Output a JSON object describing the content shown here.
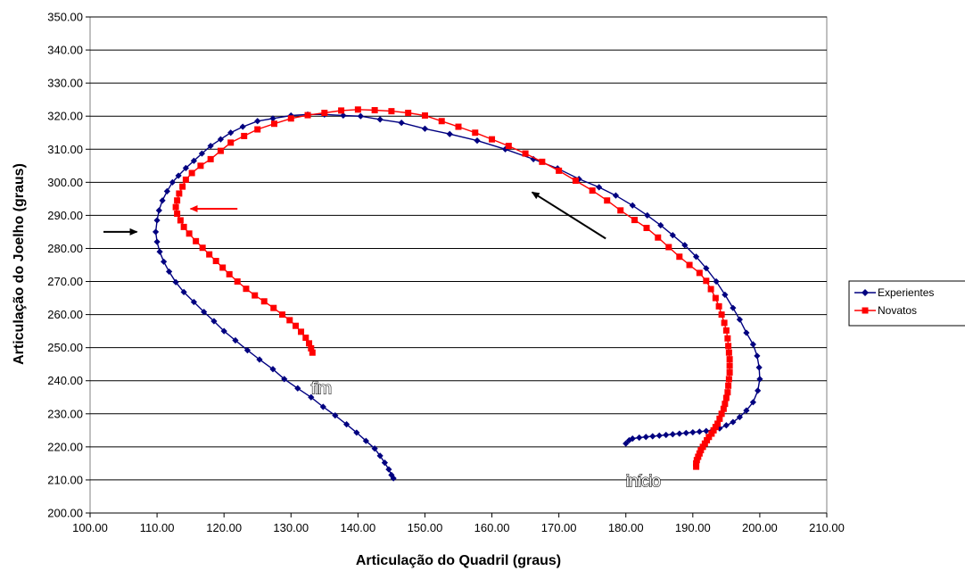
{
  "chart_data": {
    "type": "line",
    "xlabel": "Articulação do Quadril (graus)",
    "ylabel": "Articulação do Joelho (graus)",
    "xlim": [
      100,
      210
    ],
    "ylim": [
      200,
      350
    ],
    "x_ticks": [
      "100.00",
      "110.00",
      "120.00",
      "130.00",
      "140.00",
      "150.00",
      "160.00",
      "170.00",
      "180.00",
      "190.00",
      "200.00",
      "210.00"
    ],
    "y_ticks": [
      "200.00",
      "210.00",
      "220.00",
      "230.00",
      "240.00",
      "250.00",
      "260.00",
      "270.00",
      "280.00",
      "290.00",
      "300.00",
      "310.00",
      "320.00",
      "330.00",
      "340.00",
      "350.00"
    ],
    "grid": "horizontal",
    "legend_position": "right",
    "annotations": [
      {
        "text": "fim",
        "x": 133,
        "y": 236
      },
      {
        "text": "início",
        "x": 180,
        "y": 208
      }
    ],
    "arrows": [
      {
        "color": "#000000",
        "from": [
          177,
          283
        ],
        "to": [
          166,
          297
        ]
      },
      {
        "color": "#ff0000",
        "from": [
          122,
          292
        ],
        "to": [
          115,
          292
        ]
      },
      {
        "color": "#000000",
        "from": [
          102,
          285
        ],
        "to": [
          107,
          285
        ]
      }
    ],
    "series": [
      {
        "name": "Experientes",
        "color": "#000080",
        "marker": "diamond",
        "points": [
          [
            180,
            221
          ],
          [
            180.5,
            222
          ],
          [
            181,
            222.5
          ],
          [
            182,
            222.8
          ],
          [
            183,
            223
          ],
          [
            184,
            223.2
          ],
          [
            185,
            223.4
          ],
          [
            186,
            223.6
          ],
          [
            187,
            223.8
          ],
          [
            188,
            224
          ],
          [
            189,
            224.2
          ],
          [
            190,
            224.4
          ],
          [
            191,
            224.6
          ],
          [
            192,
            224.8
          ],
          [
            193,
            225.1
          ],
          [
            194,
            225.6
          ],
          [
            195,
            226.5
          ],
          [
            196,
            227.5
          ],
          [
            197,
            229
          ],
          [
            198,
            231
          ],
          [
            199,
            233.5
          ],
          [
            199.7,
            237
          ],
          [
            200,
            240.5
          ],
          [
            199.9,
            244
          ],
          [
            199.6,
            247.5
          ],
          [
            199,
            251
          ],
          [
            198,
            254.5
          ],
          [
            197,
            258.5
          ],
          [
            196,
            262
          ],
          [
            194.8,
            266
          ],
          [
            193.5,
            270
          ],
          [
            192,
            274
          ],
          [
            190.5,
            277.5
          ],
          [
            188.8,
            281
          ],
          [
            187,
            284
          ],
          [
            185.2,
            287
          ],
          [
            183.2,
            290
          ],
          [
            181,
            293
          ],
          [
            178.5,
            296
          ],
          [
            176,
            298.5
          ],
          [
            173,
            301
          ],
          [
            169.8,
            304.2
          ],
          [
            166.2,
            307
          ],
          [
            162,
            310
          ],
          [
            157.8,
            312.6
          ],
          [
            153.7,
            314.6
          ],
          [
            150,
            316.2
          ],
          [
            146.5,
            318
          ],
          [
            143.3,
            319
          ],
          [
            140.4,
            320
          ],
          [
            137.8,
            320.2
          ],
          [
            135,
            320.5
          ],
          [
            132.5,
            320.5
          ],
          [
            130,
            320.2
          ],
          [
            127.3,
            319.3
          ],
          [
            125,
            318.5
          ],
          [
            122.8,
            316.8
          ],
          [
            121,
            315
          ],
          [
            119.5,
            313
          ],
          [
            118,
            311
          ],
          [
            116.7,
            308.7
          ],
          [
            115.5,
            306.5
          ],
          [
            114.3,
            304.3
          ],
          [
            113.2,
            302
          ],
          [
            112.3,
            300
          ],
          [
            111.5,
            297.3
          ],
          [
            110.8,
            294.5
          ],
          [
            110.3,
            291.5
          ],
          [
            110,
            288.5
          ],
          [
            109.8,
            285
          ],
          [
            110,
            282
          ],
          [
            110.4,
            279
          ],
          [
            111,
            276
          ],
          [
            111.8,
            273
          ],
          [
            112.8,
            269.8
          ],
          [
            114,
            266.8
          ],
          [
            115.5,
            263.8
          ],
          [
            117,
            260.8
          ],
          [
            118.5,
            258
          ],
          [
            120,
            255
          ],
          [
            121.7,
            252.2
          ],
          [
            123.5,
            249.2
          ],
          [
            125.3,
            246.4
          ],
          [
            127.3,
            243.5
          ],
          [
            129,
            240.5
          ],
          [
            131,
            237.7
          ],
          [
            133,
            235
          ],
          [
            134.8,
            232.1
          ],
          [
            136.6,
            229.5
          ],
          [
            138.3,
            226.8
          ],
          [
            139.8,
            224.3
          ],
          [
            141.2,
            221.8
          ],
          [
            142.5,
            219.5
          ],
          [
            143.3,
            217.3
          ],
          [
            144,
            215.2
          ],
          [
            144.6,
            213.2
          ],
          [
            145,
            211.5
          ],
          [
            145.3,
            210.5
          ]
        ]
      },
      {
        "name": "Novatos",
        "color": "#ff0000",
        "marker": "square",
        "points": [
          [
            190.5,
            214
          ],
          [
            190.5,
            215
          ],
          [
            190.6,
            216
          ],
          [
            190.8,
            217
          ],
          [
            191,
            218
          ],
          [
            191.2,
            219
          ],
          [
            191.5,
            220
          ],
          [
            191.8,
            221
          ],
          [
            192.1,
            222
          ],
          [
            192.4,
            223
          ],
          [
            192.8,
            224
          ],
          [
            193.1,
            225
          ],
          [
            193.4,
            226
          ],
          [
            193.7,
            227
          ],
          [
            194,
            228.5
          ],
          [
            194.3,
            230
          ],
          [
            194.6,
            231.5
          ],
          [
            194.8,
            233
          ],
          [
            195,
            234.8
          ],
          [
            195.2,
            236.5
          ],
          [
            195.3,
            238.5
          ],
          [
            195.4,
            240.5
          ],
          [
            195.5,
            242.5
          ],
          [
            195.5,
            244.5
          ],
          [
            195.5,
            246.5
          ],
          [
            195.4,
            248.5
          ],
          [
            195.3,
            250.5
          ],
          [
            195.2,
            252.8
          ],
          [
            195,
            255.2
          ],
          [
            194.7,
            257.5
          ],
          [
            194.3,
            260
          ],
          [
            193.9,
            262.5
          ],
          [
            193.4,
            265
          ],
          [
            192.7,
            267.7
          ],
          [
            192,
            270.2
          ],
          [
            191,
            272.6
          ],
          [
            189.5,
            275
          ],
          [
            188,
            277.5
          ],
          [
            186.4,
            280.4
          ],
          [
            184.8,
            283.3
          ],
          [
            183.1,
            286.2
          ],
          [
            181.3,
            288.6
          ],
          [
            179.2,
            291.5
          ],
          [
            177.2,
            294.5
          ],
          [
            175,
            297.5
          ],
          [
            172.5,
            300.5
          ],
          [
            170,
            303.5
          ],
          [
            167.5,
            306.2
          ],
          [
            165,
            308.7
          ],
          [
            162.5,
            311
          ],
          [
            160,
            313
          ],
          [
            157.5,
            315
          ],
          [
            155,
            316.8
          ],
          [
            152.5,
            318.5
          ],
          [
            150,
            320.2
          ],
          [
            147.5,
            321
          ],
          [
            145,
            321.5
          ],
          [
            142.5,
            321.8
          ],
          [
            140,
            322
          ],
          [
            137.5,
            321.7
          ],
          [
            135,
            321
          ],
          [
            132.5,
            320.3
          ],
          [
            130,
            319.3
          ],
          [
            127.5,
            317.7
          ],
          [
            125,
            316
          ],
          [
            123,
            314
          ],
          [
            121,
            312
          ],
          [
            119.5,
            309.5
          ],
          [
            118,
            307
          ],
          [
            116.5,
            305
          ],
          [
            115.2,
            302.8
          ],
          [
            114.3,
            300.8
          ],
          [
            113.8,
            298.7
          ],
          [
            113.3,
            296.6
          ],
          [
            113,
            294.5
          ],
          [
            112.8,
            292.5
          ],
          [
            113,
            290.5
          ],
          [
            113.5,
            288.5
          ],
          [
            114,
            286.5
          ],
          [
            114.8,
            284.5
          ],
          [
            115.8,
            282.2
          ],
          [
            116.8,
            280.2
          ],
          [
            117.8,
            278.2
          ],
          [
            118.8,
            276.2
          ],
          [
            119.8,
            274.2
          ],
          [
            120.8,
            272.2
          ],
          [
            122,
            270
          ],
          [
            123.3,
            267.8
          ],
          [
            124.6,
            265.8
          ],
          [
            126,
            264
          ],
          [
            127.4,
            262
          ],
          [
            128.7,
            260
          ],
          [
            129.8,
            258.3
          ],
          [
            130.7,
            256.6
          ],
          [
            131.5,
            254.8
          ],
          [
            132.2,
            253
          ],
          [
            132.7,
            251.3
          ],
          [
            133,
            249.8
          ],
          [
            133.2,
            248.5
          ]
        ]
      }
    ]
  },
  "legend": {
    "items": [
      {
        "label": "Experientes",
        "color": "#000080"
      },
      {
        "label": "Novatos",
        "color": "#ff0000"
      }
    ]
  }
}
